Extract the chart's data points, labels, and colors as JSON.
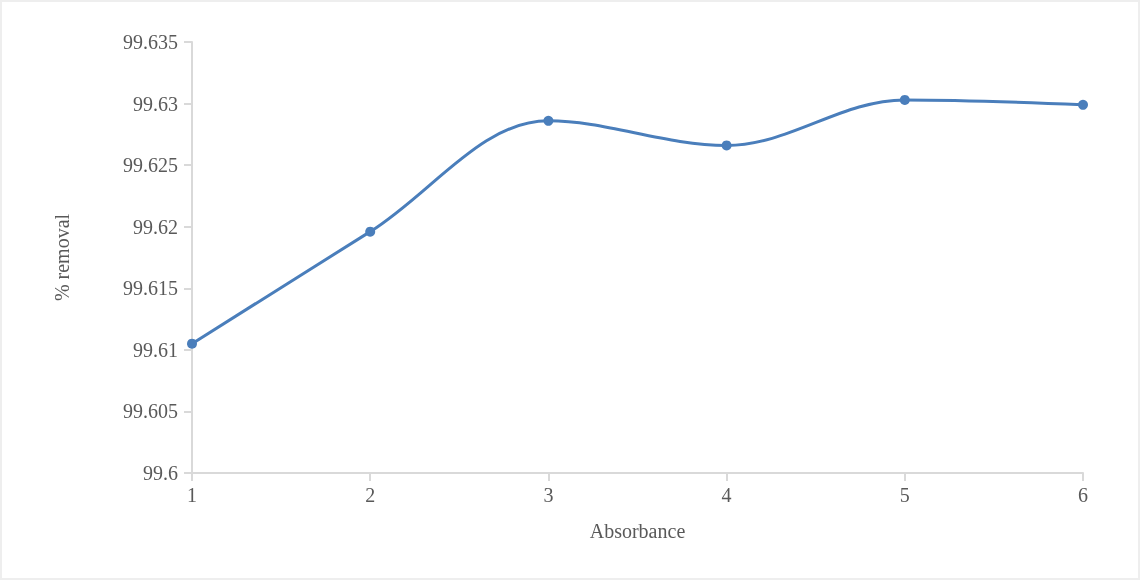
{
  "chart_data": {
    "type": "line",
    "xlabel": "Absorbance",
    "ylabel": "% removal",
    "x": [
      1,
      2,
      3,
      4,
      5,
      6
    ],
    "series": [
      {
        "color": "#4a7ebb",
        "values": [
          99.6105,
          99.6196,
          99.6286,
          99.6266,
          99.6303,
          99.6299
        ]
      }
    ],
    "xlim": [
      1,
      6
    ],
    "xticks": [
      1,
      2,
      3,
      4,
      5,
      6
    ],
    "ylim": [
      99.6,
      99.635
    ],
    "yticks": [
      99.6,
      99.605,
      99.61,
      99.615,
      99.62,
      99.625,
      99.63,
      99.635
    ],
    "grid": false,
    "marker": "circle",
    "line_style": "solid"
  }
}
